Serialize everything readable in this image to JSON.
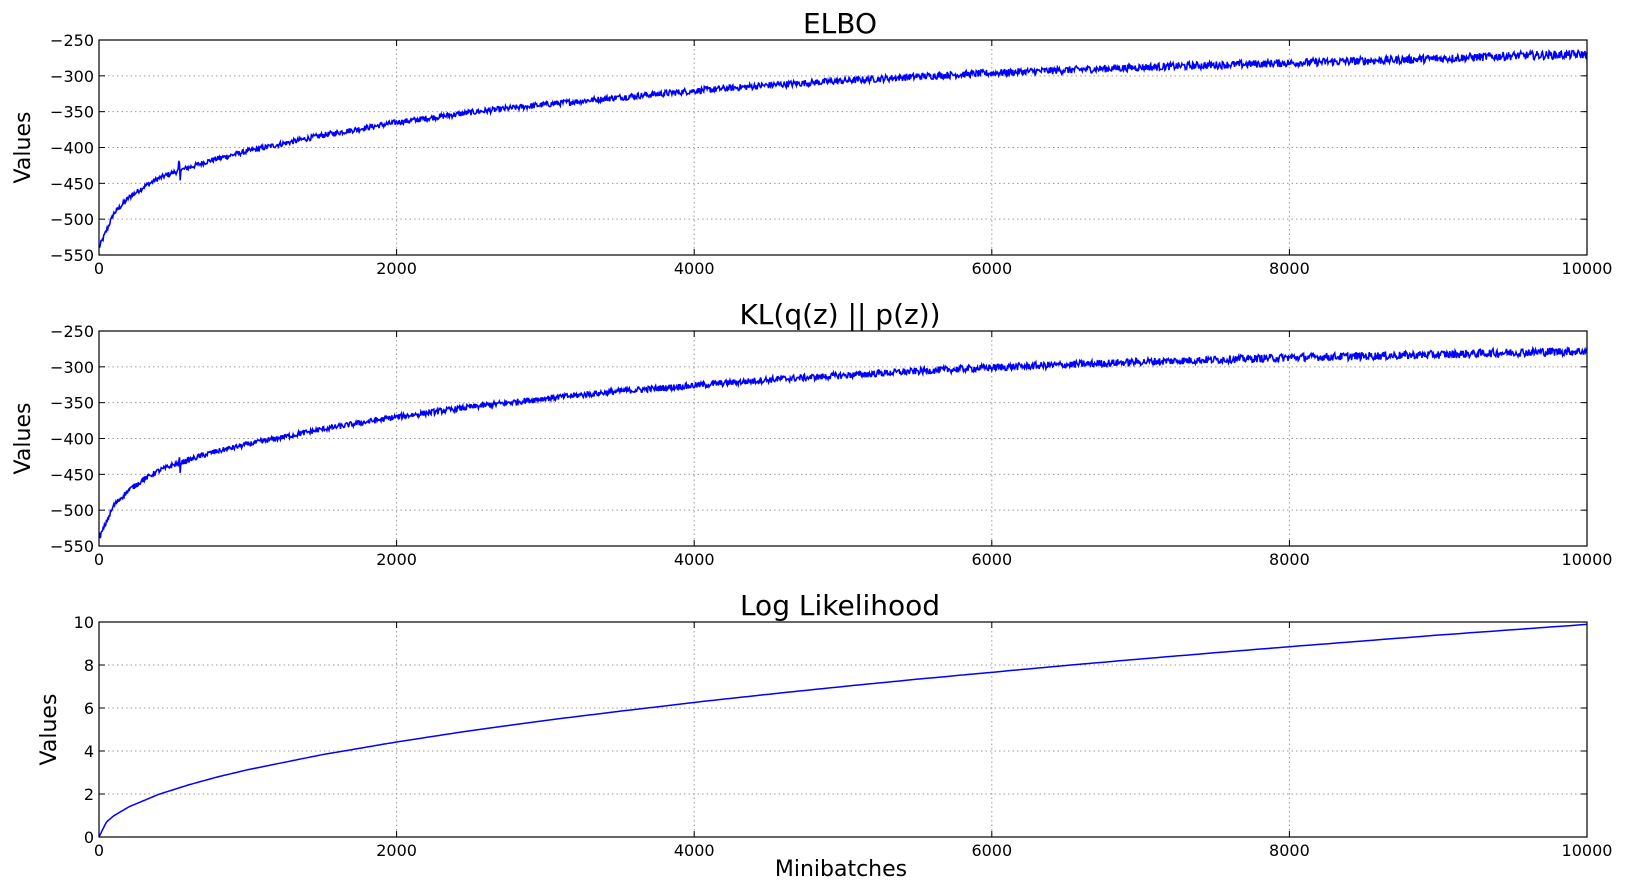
{
  "figure": {
    "xlabel": "Minibatches"
  },
  "colors": {
    "line": "#0000ff",
    "grid": "#9a9a9a",
    "axes": "#000000"
  },
  "chart_data": [
    {
      "type": "line",
      "title": "ELBO",
      "ylabel": "Values",
      "xlabel": "",
      "xlim": [
        0,
        10000
      ],
      "ylim": [
        -550,
        -250
      ],
      "xticks": [
        0,
        2000,
        4000,
        6000,
        8000,
        10000
      ],
      "yticks": [
        -550,
        -500,
        -450,
        -400,
        -350,
        -300,
        -250
      ],
      "grid": true,
      "noisy": true,
      "series": [
        {
          "x": [
            0,
            100,
            200,
            300,
            400,
            500,
            750,
            1000,
            1500,
            2000,
            2500,
            3000,
            3500,
            4000,
            4500,
            5000,
            5500,
            6000,
            6500,
            7000,
            7500,
            8000,
            8500,
            9000,
            9500,
            10000
          ],
          "values": [
            -540,
            -492,
            -470,
            -455,
            -443,
            -435,
            -418,
            -405,
            -383,
            -365,
            -351,
            -340,
            -330,
            -321,
            -313,
            -307,
            -301,
            -296,
            -292,
            -288,
            -285,
            -282,
            -279,
            -276,
            -272,
            -270
          ]
        }
      ]
    },
    {
      "type": "line",
      "title": "KL(q(z) || p(z))",
      "ylabel": "Values",
      "xlabel": "",
      "xlim": [
        0,
        10000
      ],
      "ylim": [
        -550,
        -250
      ],
      "xticks": [
        0,
        2000,
        4000,
        6000,
        8000,
        10000
      ],
      "yticks": [
        -550,
        -500,
        -450,
        -400,
        -350,
        -300,
        -250
      ],
      "grid": true,
      "noisy": true,
      "series": [
        {
          "x": [
            0,
            100,
            200,
            300,
            400,
            500,
            750,
            1000,
            1500,
            2000,
            2500,
            3000,
            3500,
            4000,
            4500,
            5000,
            5500,
            6000,
            6500,
            7000,
            7500,
            8000,
            8500,
            9000,
            9500,
            10000
          ],
          "values": [
            -540,
            -493,
            -472,
            -457,
            -445,
            -437,
            -420,
            -408,
            -387,
            -370,
            -356,
            -344,
            -334,
            -326,
            -318,
            -312,
            -306,
            -301,
            -297,
            -293,
            -290,
            -287,
            -285,
            -283,
            -280,
            -278
          ]
        }
      ]
    },
    {
      "type": "line",
      "title": "Log Likelihood",
      "ylabel": "Values",
      "xlabel": "Minibatches",
      "xlim": [
        0,
        10000
      ],
      "ylim": [
        0,
        10
      ],
      "xticks": [
        0,
        2000,
        4000,
        6000,
        8000,
        10000
      ],
      "yticks": [
        0,
        2,
        4,
        6,
        8,
        10
      ],
      "grid": true,
      "noisy": false,
      "series": [
        {
          "x": [
            0,
            50,
            100,
            200,
            400,
            600,
            800,
            1000,
            1500,
            2000,
            2500,
            3000,
            3500,
            4000,
            4500,
            5000,
            5500,
            6000,
            6500,
            7000,
            7500,
            8000,
            8500,
            9000,
            9500,
            10000
          ],
          "values": [
            0,
            0.7,
            0.99,
            1.4,
            1.98,
            2.42,
            2.8,
            3.13,
            3.83,
            4.42,
            4.95,
            5.42,
            5.85,
            6.26,
            6.64,
            7.0,
            7.34,
            7.66,
            7.98,
            8.28,
            8.57,
            8.85,
            9.12,
            9.39,
            9.64,
            9.89
          ]
        }
      ]
    }
  ]
}
